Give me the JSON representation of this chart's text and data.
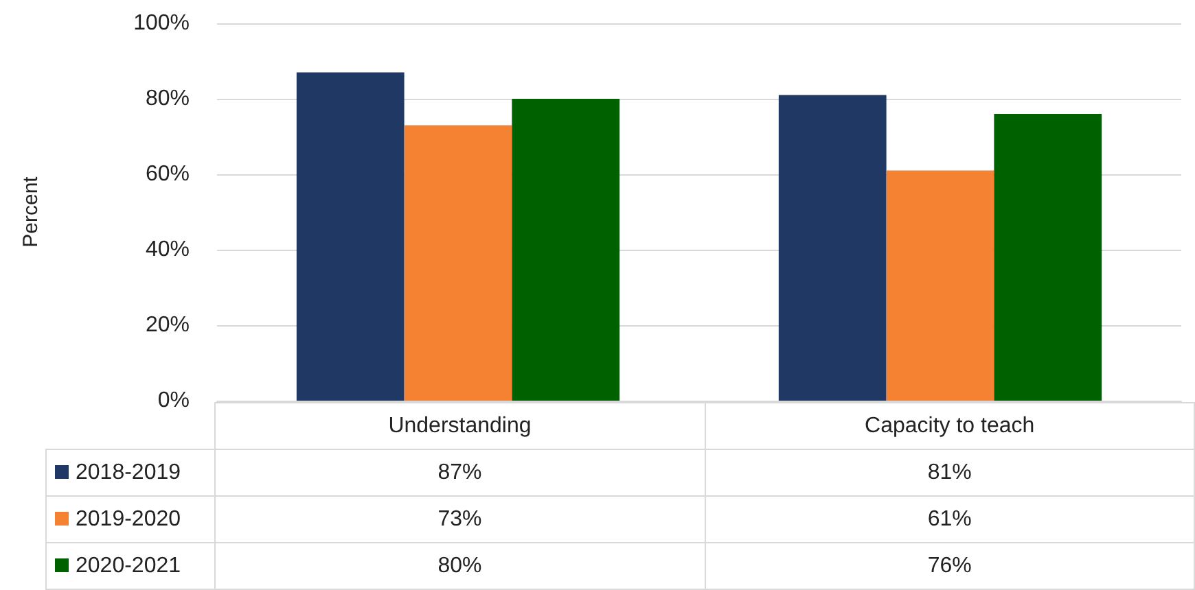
{
  "chart_data": {
    "type": "bar",
    "ylabel": "Percent",
    "categories": [
      "Understanding",
      "Capacity to teach"
    ],
    "series": [
      {
        "name": "2018-2019",
        "color": "#1f3864",
        "values": [
          87,
          81
        ],
        "value_labels": [
          "87%",
          "81%"
        ]
      },
      {
        "name": "2019-2020",
        "color": "#f58233",
        "values": [
          73,
          61
        ],
        "value_labels": [
          "73%",
          "61%"
        ]
      },
      {
        "name": "2020-2021",
        "color": "#006100",
        "values": [
          80,
          76
        ],
        "value_labels": [
          "80%",
          "76%"
        ]
      }
    ],
    "ylim": [
      0,
      100
    ],
    "yticks": [
      {
        "value": 0,
        "label": "0%"
      },
      {
        "value": 20,
        "label": "20%"
      },
      {
        "value": 40,
        "label": "40%"
      },
      {
        "value": 60,
        "label": "60%"
      },
      {
        "value": 80,
        "label": "80%"
      },
      {
        "value": 100,
        "label": "100%"
      }
    ],
    "grid": "y",
    "legend": "bottom"
  }
}
